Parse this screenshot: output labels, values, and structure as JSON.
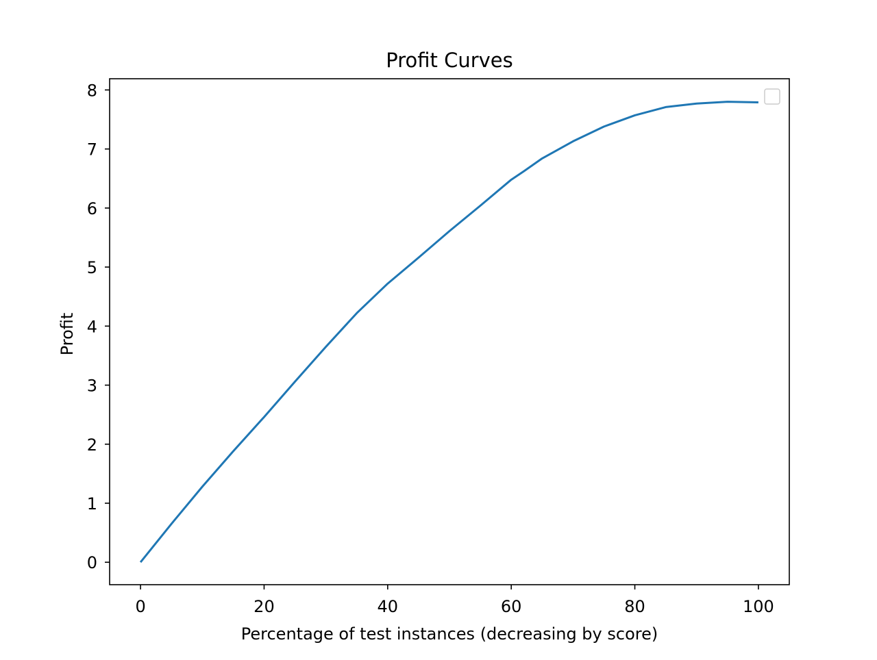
{
  "chart_data": {
    "type": "line",
    "title": "Profit Curves",
    "xlabel": "Percentage of test instances (decreasing by score)",
    "ylabel": "Profit",
    "xlim": [
      -5,
      105
    ],
    "ylim": [
      -0.38,
      8.19
    ],
    "xticks": [
      0,
      20,
      40,
      60,
      80,
      100
    ],
    "yticks": [
      0,
      1,
      2,
      3,
      4,
      5,
      6,
      7,
      8
    ],
    "grid": false,
    "legend": {
      "placement": "top-right",
      "entries": []
    },
    "series": [
      {
        "color": "#1f77b4",
        "x": [
          0,
          5,
          10,
          15,
          20,
          25,
          30,
          35,
          40,
          45,
          50,
          55,
          60,
          62,
          65,
          70,
          75,
          80,
          85,
          90,
          95,
          100
        ],
        "y": [
          0,
          0.65,
          1.28,
          1.88,
          2.46,
          3.06,
          3.65,
          4.22,
          4.72,
          5.16,
          5.61,
          6.04,
          6.48,
          6.62,
          6.84,
          7.13,
          7.38,
          7.57,
          7.71,
          7.77,
          7.8,
          7.79
        ]
      }
    ]
  }
}
